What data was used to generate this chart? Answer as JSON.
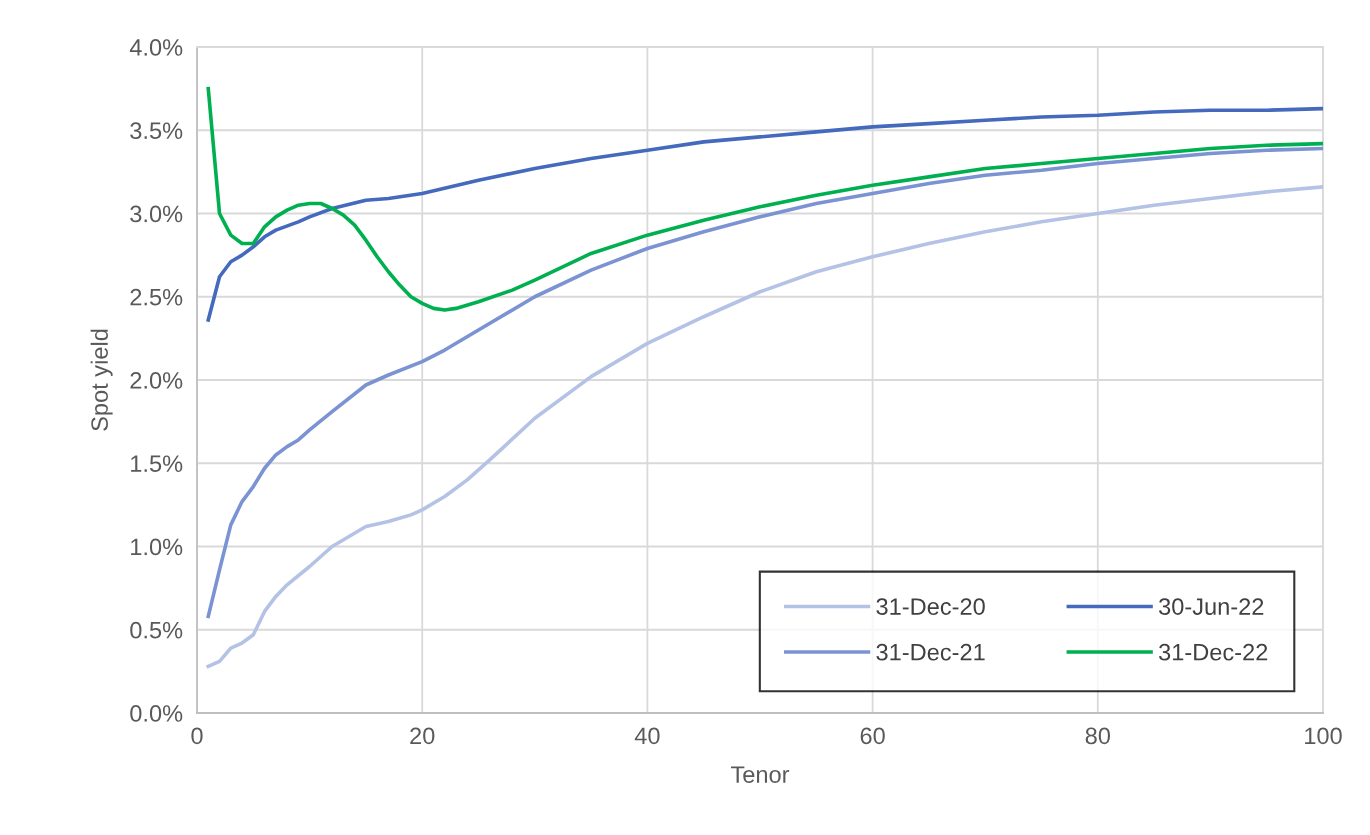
{
  "chart_data": {
    "type": "line",
    "xlabel": "Tenor",
    "ylabel": "Spot yield",
    "xlim": [
      0,
      100
    ],
    "xticks": [
      0,
      20,
      40,
      60,
      80,
      100
    ],
    "ylim": [
      0,
      4
    ],
    "yticks": [
      {
        "value": 0,
        "label": "0.0%"
      },
      {
        "value": 0.5,
        "label": "0.5%"
      },
      {
        "value": 1,
        "label": "1.0%"
      },
      {
        "value": 1.5,
        "label": "1.5%"
      },
      {
        "value": 2,
        "label": "2.0%"
      },
      {
        "value": 2.5,
        "label": "2.5%"
      },
      {
        "value": 3,
        "label": "3.0%"
      },
      {
        "value": 3.5,
        "label": "3.5%"
      },
      {
        "value": 4,
        "label": "4.0%"
      }
    ],
    "grid": true,
    "legend": "bottom right",
    "marker": "none",
    "line_style": "solid",
    "series": [
      {
        "name": "31-Dec-20",
        "color": "#b4c2e6",
        "x": [
          1,
          2,
          3,
          4,
          5,
          6,
          7,
          8,
          10,
          12,
          15,
          17,
          19,
          20,
          22,
          24,
          26,
          30,
          35,
          40,
          45,
          50,
          55,
          60,
          65,
          70,
          75,
          80,
          85,
          90,
          95,
          100
        ],
        "values": [
          0.28,
          0.31,
          0.39,
          0.42,
          0.47,
          0.61,
          0.7,
          0.77,
          0.88,
          1.0,
          1.12,
          1.15,
          1.19,
          1.22,
          1.3,
          1.4,
          1.52,
          1.77,
          2.02,
          2.22,
          2.38,
          2.53,
          2.65,
          2.74,
          2.82,
          2.89,
          2.95,
          3.0,
          3.05,
          3.09,
          3.13,
          3.16
        ]
      },
      {
        "name": "31-Dec-21",
        "color": "#7b93d3",
        "x": [
          1,
          2,
          3,
          4,
          5,
          6,
          7,
          8,
          9,
          10,
          12,
          15,
          17,
          20,
          22,
          25,
          30,
          35,
          40,
          45,
          50,
          55,
          60,
          65,
          70,
          75,
          80,
          85,
          90,
          95,
          100
        ],
        "values": [
          0.58,
          0.86,
          1.13,
          1.27,
          1.36,
          1.47,
          1.55,
          1.6,
          1.64,
          1.7,
          1.81,
          1.97,
          2.03,
          2.11,
          2.18,
          2.3,
          2.5,
          2.66,
          2.79,
          2.89,
          2.98,
          3.06,
          3.12,
          3.18,
          3.23,
          3.26,
          3.3,
          3.33,
          3.36,
          3.38,
          3.39
        ]
      },
      {
        "name": "30-Jun-22",
        "color": "#4469bd",
        "x": [
          1,
          2,
          3,
          4,
          5,
          6,
          7,
          9,
          10,
          12,
          15,
          17,
          20,
          25,
          30,
          35,
          40,
          45,
          50,
          55,
          60,
          65,
          70,
          75,
          80,
          85,
          90,
          95,
          100
        ],
        "values": [
          2.36,
          2.62,
          2.71,
          2.75,
          2.8,
          2.86,
          2.9,
          2.95,
          2.98,
          3.03,
          3.08,
          3.09,
          3.12,
          3.2,
          3.27,
          3.33,
          3.38,
          3.43,
          3.46,
          3.49,
          3.52,
          3.54,
          3.56,
          3.58,
          3.59,
          3.61,
          3.62,
          3.62,
          3.63
        ]
      },
      {
        "name": "31-Dec-22",
        "color": "#00b050",
        "x": [
          1,
          2,
          3,
          4,
          5,
          6,
          7,
          8,
          9,
          10,
          11,
          12,
          13,
          14,
          15,
          16,
          17,
          18,
          19,
          20,
          21,
          22,
          23,
          25,
          28,
          30,
          35,
          40,
          45,
          50,
          55,
          60,
          65,
          70,
          75,
          80,
          85,
          90,
          95,
          100
        ],
        "values": [
          3.75,
          3.0,
          2.87,
          2.82,
          2.82,
          2.92,
          2.98,
          3.02,
          3.05,
          3.06,
          3.06,
          3.03,
          2.99,
          2.93,
          2.84,
          2.74,
          2.65,
          2.57,
          2.5,
          2.46,
          2.43,
          2.42,
          2.43,
          2.47,
          2.54,
          2.6,
          2.76,
          2.87,
          2.96,
          3.04,
          3.11,
          3.17,
          3.22,
          3.27,
          3.3,
          3.33,
          3.36,
          3.39,
          3.41,
          3.42
        ]
      }
    ]
  }
}
